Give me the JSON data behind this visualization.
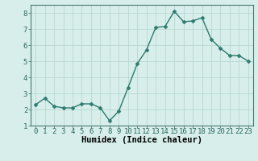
{
  "x": [
    0,
    1,
    2,
    3,
    4,
    5,
    6,
    7,
    8,
    9,
    10,
    11,
    12,
    13,
    14,
    15,
    16,
    17,
    18,
    19,
    20,
    21,
    22,
    23
  ],
  "y": [
    2.3,
    2.7,
    2.2,
    2.1,
    2.1,
    2.35,
    2.35,
    2.1,
    1.3,
    1.9,
    3.35,
    4.85,
    5.7,
    7.1,
    7.15,
    8.1,
    7.45,
    7.5,
    7.7,
    6.35,
    5.8,
    5.35,
    5.35,
    5.0
  ],
  "line_color": "#2d7a6e",
  "marker": "D",
  "marker_size": 2.5,
  "bg_color": "#d7eeea",
  "grid_color": "#b8d8d2",
  "xlabel": "Humidex (Indice chaleur)",
  "ylim": [
    1,
    8.5
  ],
  "xlim": [
    -0.5,
    23.5
  ],
  "yticks": [
    1,
    2,
    3,
    4,
    5,
    6,
    7,
    8
  ],
  "xticks": [
    0,
    1,
    2,
    3,
    4,
    5,
    6,
    7,
    8,
    9,
    10,
    11,
    12,
    13,
    14,
    15,
    16,
    17,
    18,
    19,
    20,
    21,
    22,
    23
  ],
  "xtick_labels": [
    "0",
    "1",
    "2",
    "3",
    "4",
    "5",
    "6",
    "7",
    "8",
    "9",
    "10",
    "11",
    "12",
    "13",
    "14",
    "15",
    "16",
    "17",
    "18",
    "19",
    "20",
    "21",
    "22",
    "23"
  ],
  "tick_fontsize": 6.5,
  "xlabel_fontsize": 7.5,
  "line_width": 1.0
}
